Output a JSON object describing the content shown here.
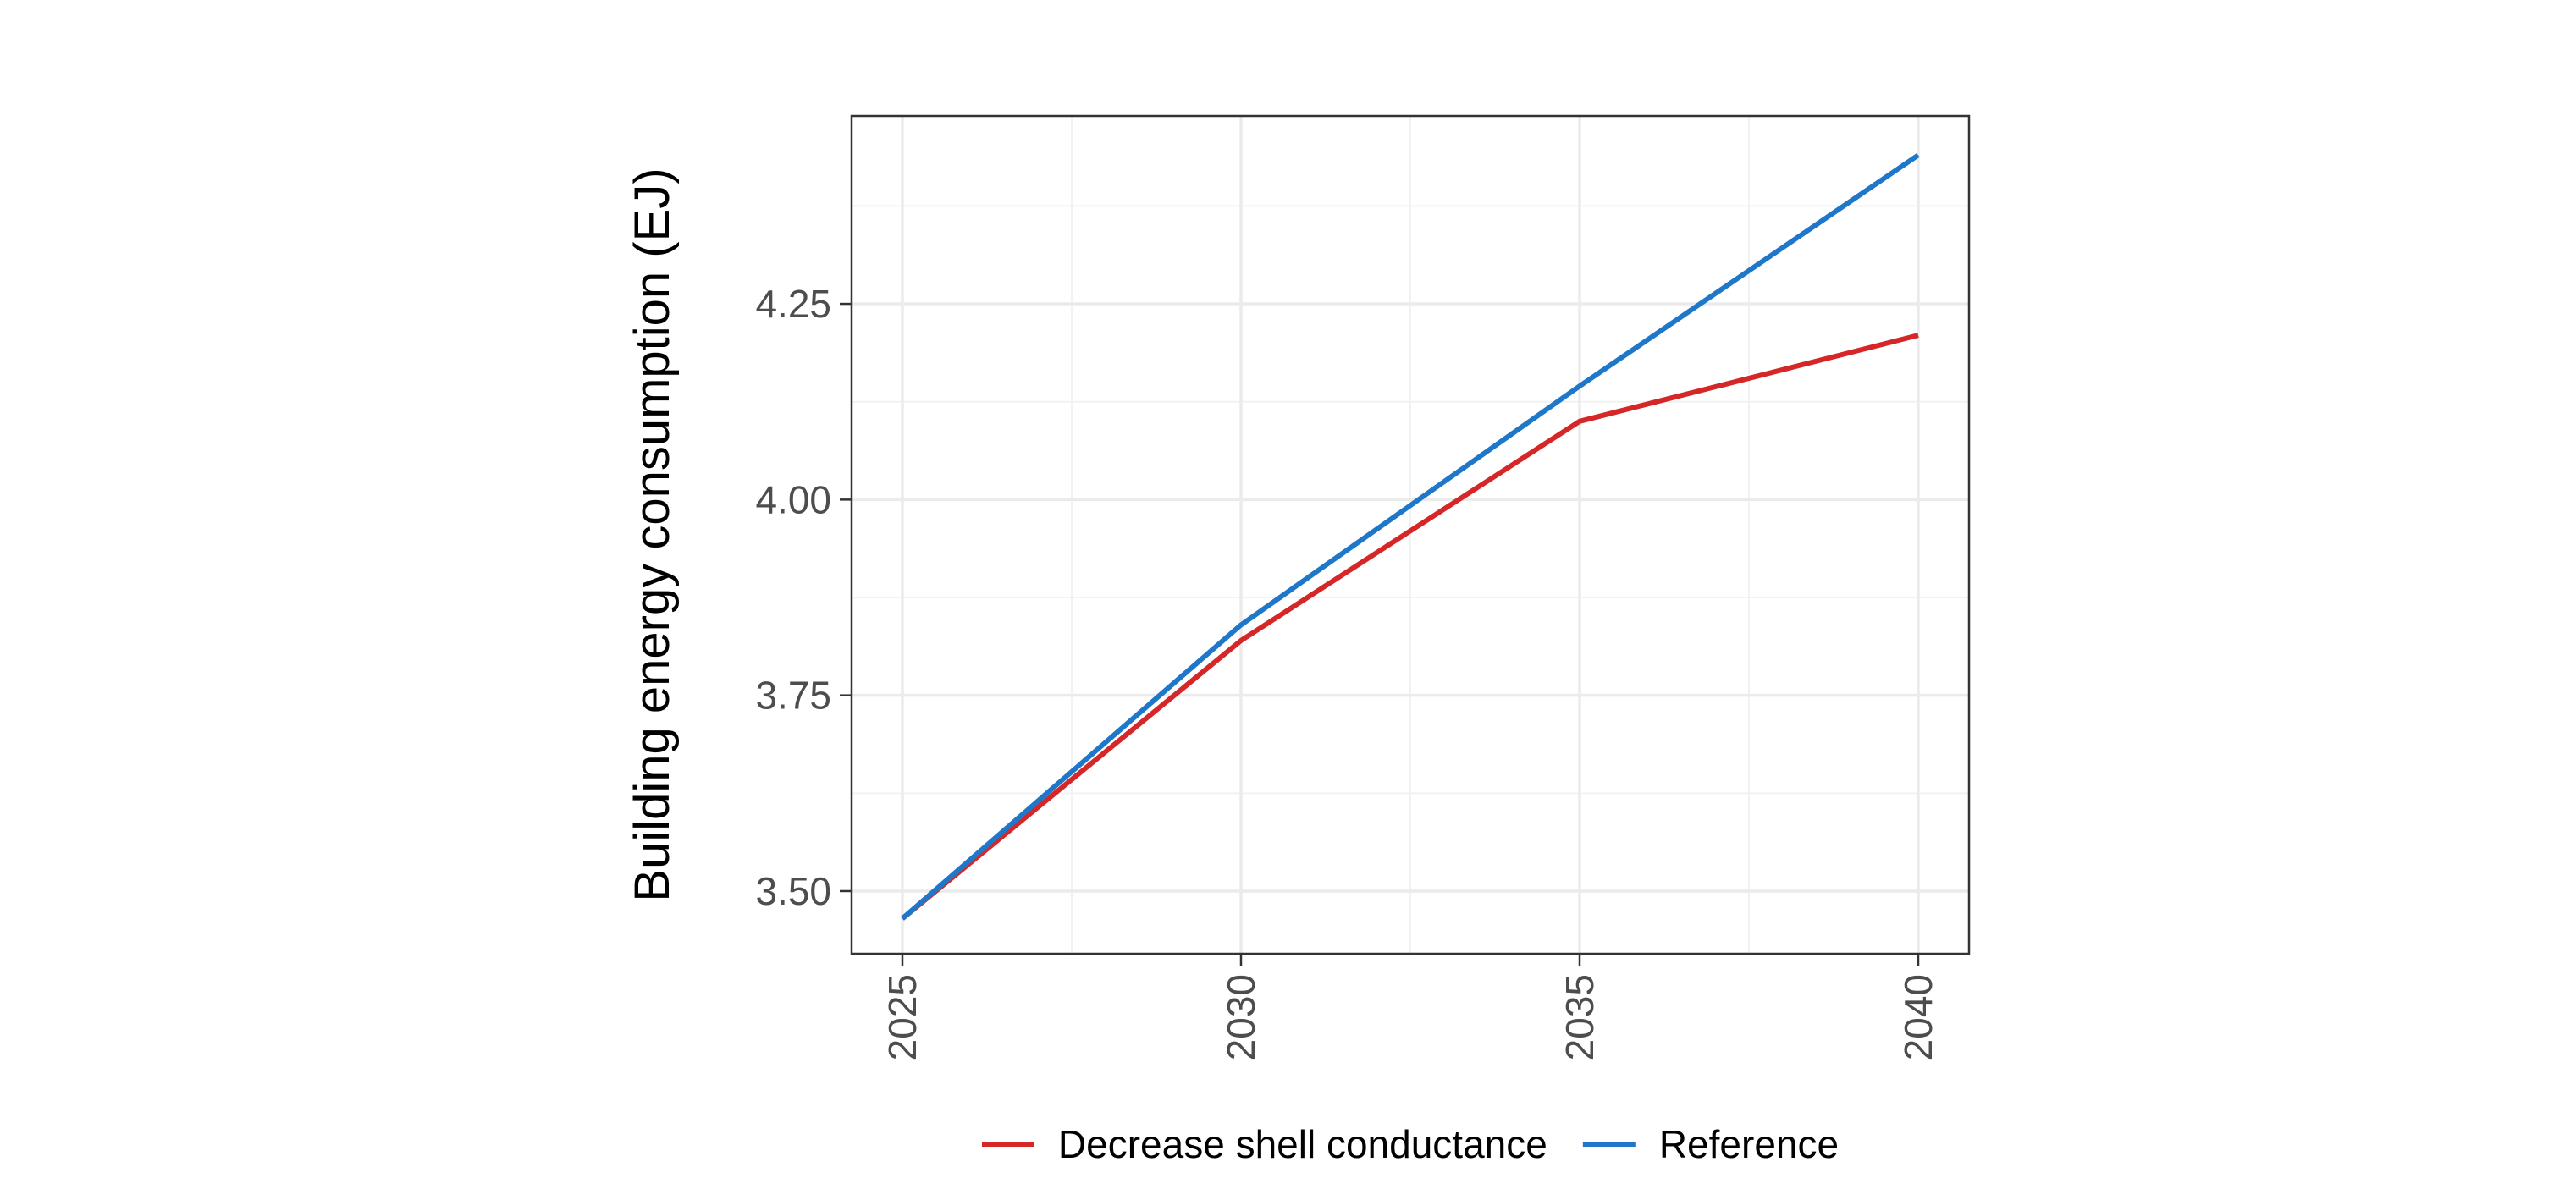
{
  "chart_data": {
    "type": "line",
    "title": "",
    "xlabel": "",
    "ylabel": "Building energy consumption (EJ)",
    "x": [
      2025,
      2030,
      2035,
      2040
    ],
    "x_tick_labels": [
      "2025",
      "2030",
      "2035",
      "2040"
    ],
    "y_ticks": [
      3.5,
      3.75,
      4.0,
      4.25
    ],
    "y_tick_labels": [
      "3.50",
      "3.75",
      "4.00",
      "4.25"
    ],
    "xlim": [
      2024.25,
      2040.75
    ],
    "ylim": [
      3.42,
      4.49
    ],
    "grid": true,
    "legend_position": "bottom",
    "series": [
      {
        "name": "Decrease shell conductance",
        "color": "#d62728",
        "values": [
          3.465,
          3.82,
          4.1,
          4.21
        ]
      },
      {
        "name": "Reference",
        "color": "#1f77c9",
        "values": [
          3.465,
          3.84,
          4.145,
          4.44
        ]
      }
    ]
  }
}
